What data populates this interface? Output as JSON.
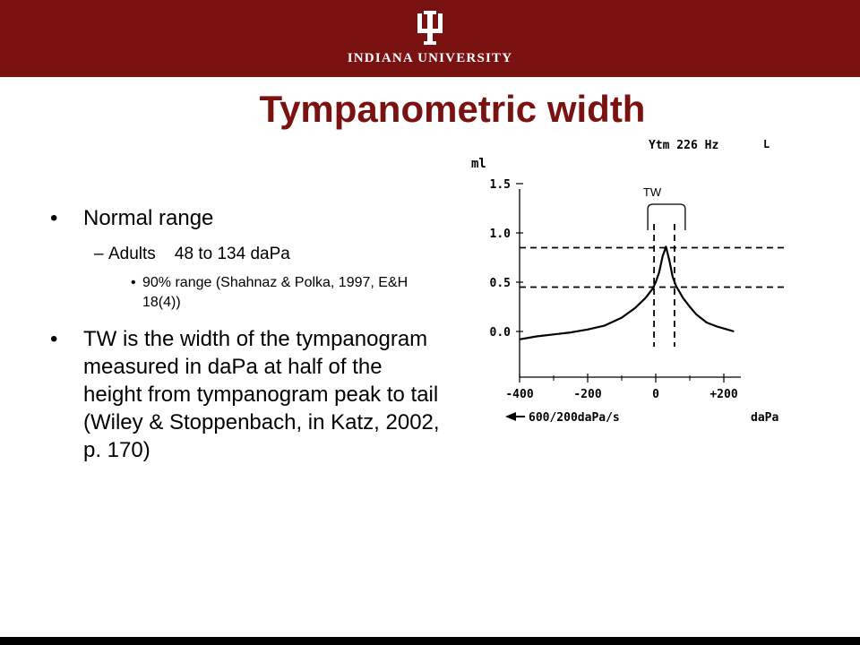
{
  "header": {
    "logo_text": "INDIANA UNIVERSITY",
    "logo_icon": "iu-trident-icon",
    "bg_color": "#7a1212"
  },
  "slide": {
    "title": "Tympanometric width",
    "title_color": "#7a1212",
    "bullet_symbol": "•",
    "dash_symbol": "–",
    "bullets": [
      {
        "text": "Normal range",
        "sub": [
          {
            "text": "Adults    48 to 134 daPa",
            "sub": [
              {
                "text": "90% range (Shahnaz & Polka, 1997, E&H 18(4))"
              }
            ]
          }
        ]
      },
      {
        "text": "TW is the width of the tympanogram measured in daPa at half of the height from tympanogram peak to tail (Wiley & Stoppenbach, in Katz, 2002, p. 170)"
      }
    ]
  },
  "chart_data": {
    "type": "line",
    "header_left": "Ytm 226 Hz",
    "header_right": "L",
    "ylabel": "ml",
    "xlabel": "daPa",
    "speed_label": "600/200daPa/s",
    "tw_label": "TW",
    "xlim": [
      -400,
      250
    ],
    "ylim": [
      0,
      1.5
    ],
    "x_ticks": [
      -400,
      -200,
      0,
      200
    ],
    "x_tick_labels": [
      "-400",
      "-200",
      "0",
      "+200"
    ],
    "y_ticks": [
      0.0,
      0.5,
      1.0,
      1.5
    ],
    "y_tick_labels": [
      "0.0",
      "0.5",
      "1.0",
      "1.5"
    ],
    "series": [
      {
        "x": [
          -400,
          -350,
          -300,
          -250,
          -200,
          -150,
          -100,
          -60,
          -30,
          -10,
          0,
          10,
          20,
          30,
          40,
          50,
          60,
          70,
          80,
          100,
          120,
          150,
          180,
          200,
          230
        ],
        "y": [
          -0.08,
          -0.05,
          -0.03,
          -0.01,
          0.02,
          0.06,
          0.14,
          0.24,
          0.34,
          0.43,
          0.5,
          0.6,
          0.76,
          0.86,
          0.72,
          0.55,
          0.46,
          0.4,
          0.34,
          0.25,
          0.17,
          0.09,
          0.05,
          0.03,
          0.0
        ]
      }
    ],
    "guides": {
      "half_height_y": 0.45,
      "peak_y": 0.85,
      "tw_left_x": -5,
      "tw_right_x": 55
    },
    "grid": false,
    "legend": "none"
  }
}
